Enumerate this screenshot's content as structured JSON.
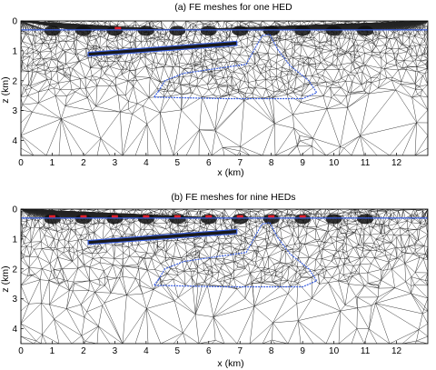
{
  "figure": {
    "panels": [
      {
        "title": "(a) FE meshes for one HED",
        "xlabel": "x (km)",
        "ylabel": "z (km)",
        "x_ticks": [
          "0",
          "1",
          "2",
          "3",
          "4",
          "5",
          "6",
          "7",
          "8",
          "9",
          "10",
          "11",
          "12"
        ],
        "z_ticks": [
          "0",
          "1",
          "2",
          "3",
          "4"
        ],
        "source_count": 1,
        "source_x_km": [
          3.1
        ],
        "receiver_x_km": [
          1,
          2,
          3,
          4,
          5,
          6,
          7,
          8,
          9,
          10,
          11
        ]
      },
      {
        "title": "(b) FE meshes for nine HEDs",
        "xlabel": "x (km)",
        "ylabel": "z (km)",
        "x_ticks": [
          "0",
          "1",
          "2",
          "3",
          "4",
          "5",
          "6",
          "7",
          "8",
          "9",
          "10",
          "11",
          "12"
        ],
        "z_ticks": [
          "0",
          "1",
          "2",
          "3",
          "4"
        ],
        "source_count": 9,
        "source_x_km": [
          1.0,
          2.0,
          3.0,
          4.0,
          5.0,
          6.0,
          7.0,
          8.0,
          9.0
        ],
        "receiver_x_km": [
          1,
          2,
          3,
          4,
          5,
          6,
          7,
          8,
          9,
          10,
          11
        ]
      }
    ],
    "domain": {
      "x_range_km": [
        0,
        13
      ],
      "z_range_km": [
        0,
        4.5
      ],
      "seafloor_z_km": 0.3
    },
    "colors": {
      "mesh": "#262626",
      "boundary": "#3a5fe0",
      "source": "#e0202a",
      "receiver": "#111111"
    }
  }
}
